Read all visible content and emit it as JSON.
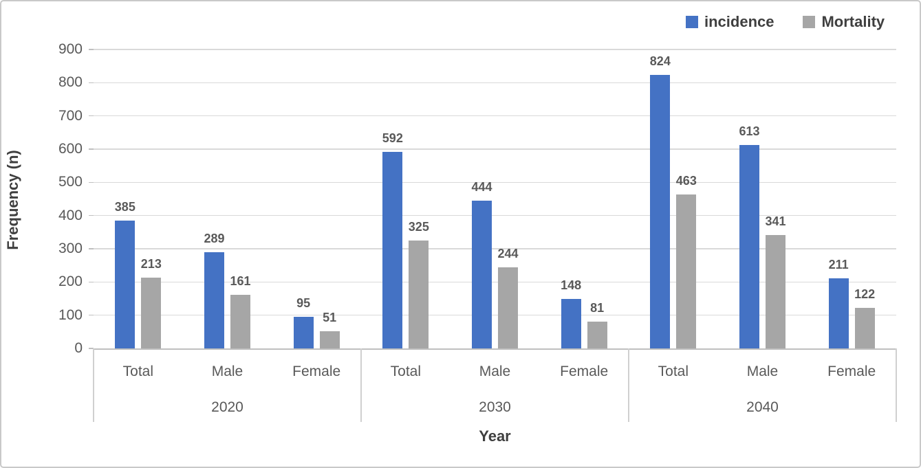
{
  "chart_data": {
    "type": "bar",
    "title": "",
    "xlabel": "Year",
    "ylabel": "Frequency (n)",
    "ylim": [
      0,
      900
    ],
    "ytick_interval": 100,
    "yticks": [
      0,
      100,
      200,
      300,
      400,
      500,
      600,
      700,
      800,
      900
    ],
    "grid": "horizontal",
    "legend_position": "top-right",
    "group_labels": [
      "2020",
      "2030",
      "2040"
    ],
    "subgroup_labels": [
      "Total",
      "Male",
      "Female"
    ],
    "series": [
      {
        "name": "incidence",
        "color": "#4472C4",
        "values": [
          [
            385,
            289,
            95
          ],
          [
            592,
            444,
            148
          ],
          [
            824,
            613,
            211
          ]
        ]
      },
      {
        "name": "Mortality",
        "color": "#A6A6A6",
        "values": [
          [
            213,
            161,
            51
          ],
          [
            325,
            244,
            81
          ],
          [
            463,
            341,
            122
          ]
        ]
      }
    ]
  }
}
